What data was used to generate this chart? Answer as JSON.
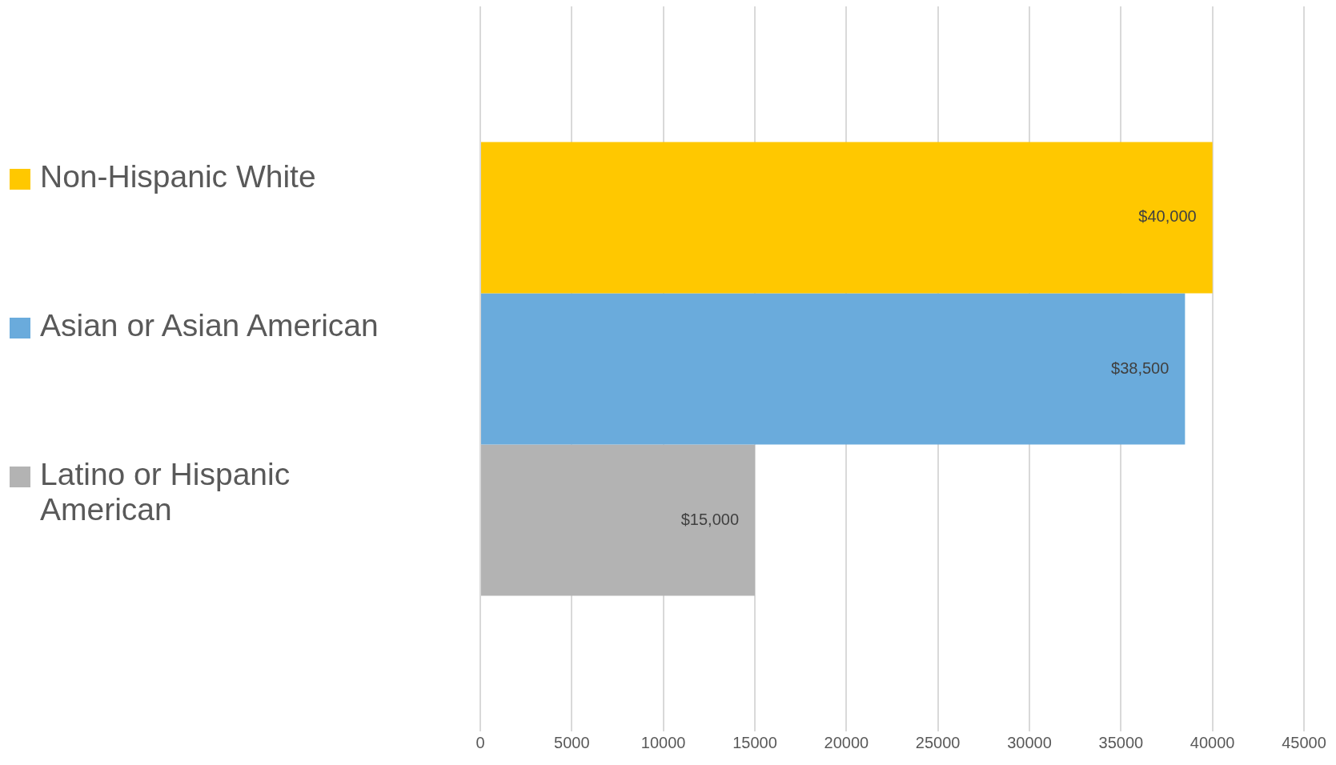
{
  "chart_data": {
    "type": "bar",
    "orientation": "horizontal",
    "categories": [
      null
    ],
    "series": [
      {
        "name": "Non-Hispanic White",
        "color": "#ffc800",
        "values": [
          40000
        ],
        "value_labels": [
          "$40,000"
        ]
      },
      {
        "name": "Asian or Asian American",
        "color": "#6aabdc",
        "values": [
          38500
        ],
        "value_labels": [
          "$38,500"
        ]
      },
      {
        "name": "Latino or Hispanic American",
        "color": "#b3b3b3",
        "values": [
          15000
        ],
        "value_labels": [
          "$15,000"
        ]
      }
    ],
    "xlim": [
      0,
      45000
    ],
    "xticks": [
      0,
      5000,
      10000,
      15000,
      20000,
      25000,
      30000,
      35000,
      40000,
      45000
    ],
    "grid": "x",
    "legend": "left"
  }
}
